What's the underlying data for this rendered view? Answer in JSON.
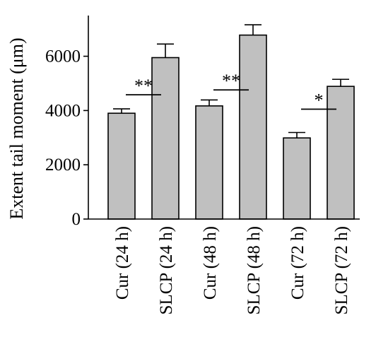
{
  "chart_data": {
    "type": "bar",
    "title": "",
    "xlabel": "",
    "ylabel": "Extent tail moment (μm)",
    "ylim": [
      0,
      7500
    ],
    "yticks": [
      0,
      2000,
      4000,
      6000
    ],
    "ytick_labels": [
      "0",
      "2000",
      "4000",
      "6000"
    ],
    "grid": false,
    "categories": [
      "Cur (24 h)",
      "SLCP (24 h)",
      "Cur (48 h)",
      "SLCP (48 h)",
      "Cur (72 h)",
      "SLCP (72 h)"
    ],
    "values": [
      3900,
      5950,
      4170,
      6780,
      2990,
      4890
    ],
    "errors": [
      160,
      500,
      220,
      380,
      200,
      260
    ],
    "bar_color": "#c0c0c0",
    "significance": [
      {
        "pair": [
          0,
          1
        ],
        "label": "**",
        "y": 4580
      },
      {
        "pair": [
          2,
          3
        ],
        "label": "**",
        "y": 4760
      },
      {
        "pair": [
          4,
          5
        ],
        "label": "*",
        "y": 4050
      }
    ]
  }
}
